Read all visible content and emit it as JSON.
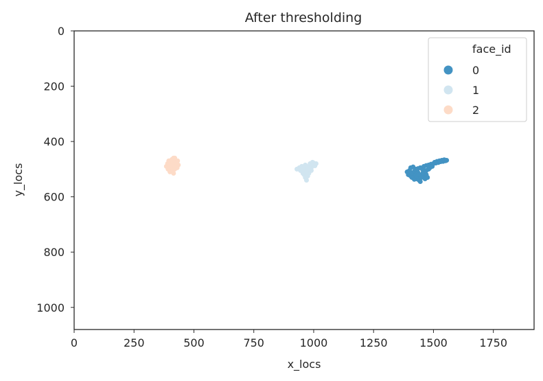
{
  "chart_data": {
    "type": "scatter",
    "title": "After thresholding",
    "xlabel": "x_locs",
    "ylabel": "y_locs",
    "xlim": [
      0,
      1920
    ],
    "ylim": [
      1080,
      0
    ],
    "y_inverted": true,
    "xticks": [
      0,
      250,
      500,
      750,
      1000,
      1250,
      1500,
      1750
    ],
    "yticks": [
      0,
      200,
      400,
      600,
      800,
      1000
    ],
    "grid": false,
    "legend": {
      "title": "face_id",
      "placement": "top-right"
    },
    "series": [
      {
        "name": "0",
        "color": "#4393c3",
        "points": [
          [
            1390,
            510
          ],
          [
            1395,
            520
          ],
          [
            1400,
            505
          ],
          [
            1405,
            525
          ],
          [
            1410,
            515
          ],
          [
            1415,
            530
          ],
          [
            1420,
            508
          ],
          [
            1425,
            520
          ],
          [
            1430,
            535
          ],
          [
            1435,
            512
          ],
          [
            1440,
            540
          ],
          [
            1445,
            525
          ],
          [
            1450,
            530
          ],
          [
            1455,
            518
          ],
          [
            1460,
            527
          ],
          [
            1465,
            535
          ],
          [
            1470,
            520
          ],
          [
            1475,
            530
          ],
          [
            1405,
            495
          ],
          [
            1415,
            492
          ],
          [
            1425,
            500
          ],
          [
            1435,
            498
          ],
          [
            1445,
            495
          ],
          [
            1455,
            502
          ],
          [
            1460,
            490
          ],
          [
            1470,
            487
          ],
          [
            1480,
            485
          ],
          [
            1490,
            482
          ],
          [
            1500,
            480
          ],
          [
            1505,
            475
          ],
          [
            1510,
            478
          ],
          [
            1515,
            472
          ],
          [
            1520,
            476
          ],
          [
            1525,
            470
          ],
          [
            1530,
            473
          ],
          [
            1535,
            468
          ],
          [
            1540,
            472
          ],
          [
            1545,
            466
          ],
          [
            1550,
            470
          ],
          [
            1555,
            468
          ],
          [
            1485,
            495
          ],
          [
            1495,
            490
          ],
          [
            1480,
            500
          ],
          [
            1470,
            505
          ],
          [
            1465,
            512
          ],
          [
            1455,
            515
          ],
          [
            1410,
            530
          ],
          [
            1420,
            537
          ],
          [
            1430,
            528
          ],
          [
            1440,
            520
          ],
          [
            1445,
            545
          ]
        ]
      },
      {
        "name": "1",
        "color": "#d1e5f0",
        "points": [
          [
            930,
            500
          ],
          [
            940,
            495
          ],
          [
            945,
            505
          ],
          [
            950,
            490
          ],
          [
            955,
            510
          ],
          [
            960,
            500
          ],
          [
            965,
            485
          ],
          [
            970,
            495
          ],
          [
            975,
            505
          ],
          [
            980,
            490
          ],
          [
            985,
            480
          ],
          [
            990,
            495
          ],
          [
            995,
            485
          ],
          [
            1000,
            478
          ],
          [
            1005,
            488
          ],
          [
            1010,
            480
          ],
          [
            960,
            520
          ],
          [
            965,
            530
          ],
          [
            970,
            540
          ],
          [
            975,
            525
          ],
          [
            980,
            515
          ],
          [
            970,
            510
          ],
          [
            955,
            515
          ],
          [
            990,
            505
          ],
          [
            985,
            500
          ],
          [
            945,
            495
          ],
          [
            950,
            500
          ],
          [
            975,
            495
          ],
          [
            995,
            475
          ],
          [
            960,
            490
          ]
        ]
      },
      {
        "name": "2",
        "color": "#fddbc7",
        "points": [
          [
            385,
            490
          ],
          [
            390,
            480
          ],
          [
            392,
            500
          ],
          [
            395,
            470
          ],
          [
            398,
            485
          ],
          [
            400,
            495
          ],
          [
            402,
            475
          ],
          [
            405,
            505
          ],
          [
            408,
            465
          ],
          [
            410,
            490
          ],
          [
            412,
            480
          ],
          [
            415,
            460
          ],
          [
            418,
            495
          ],
          [
            420,
            470
          ],
          [
            422,
            485
          ],
          [
            425,
            475
          ],
          [
            428,
            490
          ],
          [
            430,
            480
          ],
          [
            432,
            470
          ],
          [
            435,
            485
          ],
          [
            400,
            510
          ],
          [
            410,
            505
          ],
          [
            420,
            500
          ],
          [
            415,
            515
          ],
          [
            425,
            495
          ],
          [
            405,
            470
          ],
          [
            395,
            495
          ],
          [
            410,
            470
          ],
          [
            420,
            460
          ],
          [
            430,
            495
          ]
        ]
      }
    ]
  }
}
